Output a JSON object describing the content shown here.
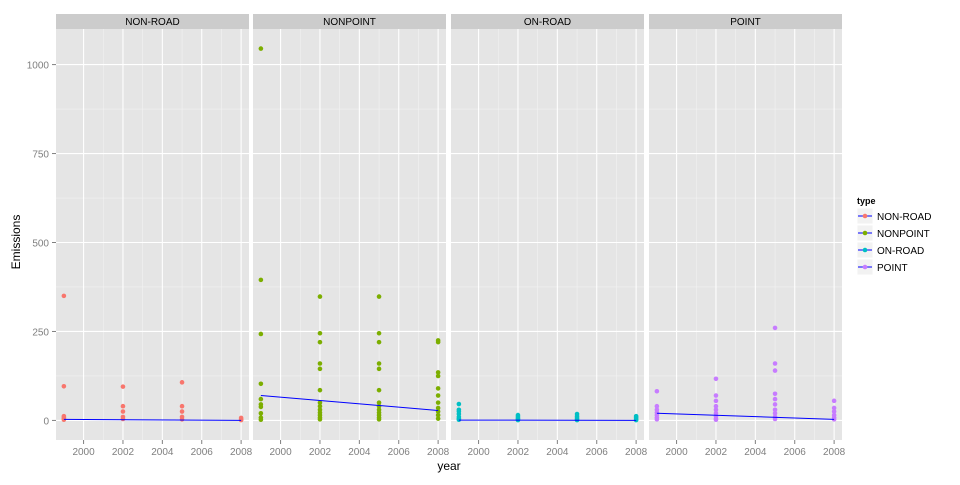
{
  "chart_data": {
    "type": "scatter",
    "facet_by": "type",
    "xlabel": "year",
    "ylabel": "Emissions",
    "xlim": [
      1998.6,
      2008.4
    ],
    "ylim": [
      -55,
      1100
    ],
    "x_ticks": [
      2000,
      2002,
      2004,
      2006,
      2008
    ],
    "y_ticks": [
      0,
      250,
      500,
      750,
      1000
    ],
    "legend": {
      "title": "type",
      "position": "right",
      "entries": [
        "NON-ROAD",
        "NONPOINT",
        "ON-ROAD",
        "POINT"
      ]
    },
    "trend_line_color": "#0000ff",
    "panels": [
      {
        "name": "NON-ROAD",
        "color": "#F8766D",
        "points": [
          {
            "x": 1999,
            "y": 350
          },
          {
            "x": 1999,
            "y": 96
          },
          {
            "x": 1999,
            "y": 12
          },
          {
            "x": 1999,
            "y": 8
          },
          {
            "x": 1999,
            "y": 5
          },
          {
            "x": 1999,
            "y": 2
          },
          {
            "x": 2002,
            "y": 95
          },
          {
            "x": 2002,
            "y": 40
          },
          {
            "x": 2002,
            "y": 25
          },
          {
            "x": 2002,
            "y": 10
          },
          {
            "x": 2002,
            "y": 4
          },
          {
            "x": 2005,
            "y": 107
          },
          {
            "x": 2005,
            "y": 40
          },
          {
            "x": 2005,
            "y": 25
          },
          {
            "x": 2005,
            "y": 10
          },
          {
            "x": 2005,
            "y": 3
          },
          {
            "x": 2008,
            "y": 7
          },
          {
            "x": 2008,
            "y": 3
          },
          {
            "x": 2008,
            "y": 1
          }
        ],
        "trend": [
          {
            "x": 1999,
            "y": 3
          },
          {
            "x": 2008,
            "y": 0
          }
        ]
      },
      {
        "name": "NONPOINT",
        "color": "#7CAE00",
        "points": [
          {
            "x": 1999,
            "y": 1045
          },
          {
            "x": 1999,
            "y": 395
          },
          {
            "x": 1999,
            "y": 243
          },
          {
            "x": 1999,
            "y": 103
          },
          {
            "x": 1999,
            "y": 60
          },
          {
            "x": 1999,
            "y": 45
          },
          {
            "x": 1999,
            "y": 38
          },
          {
            "x": 1999,
            "y": 20
          },
          {
            "x": 1999,
            "y": 8
          },
          {
            "x": 1999,
            "y": 2
          },
          {
            "x": 2002,
            "y": 348
          },
          {
            "x": 2002,
            "y": 245
          },
          {
            "x": 2002,
            "y": 220
          },
          {
            "x": 2002,
            "y": 160
          },
          {
            "x": 2002,
            "y": 145
          },
          {
            "x": 2002,
            "y": 85
          },
          {
            "x": 2002,
            "y": 50
          },
          {
            "x": 2002,
            "y": 40
          },
          {
            "x": 2002,
            "y": 30
          },
          {
            "x": 2002,
            "y": 22
          },
          {
            "x": 2002,
            "y": 15
          },
          {
            "x": 2002,
            "y": 8
          },
          {
            "x": 2002,
            "y": 3
          },
          {
            "x": 2005,
            "y": 348
          },
          {
            "x": 2005,
            "y": 245
          },
          {
            "x": 2005,
            "y": 220
          },
          {
            "x": 2005,
            "y": 160
          },
          {
            "x": 2005,
            "y": 145
          },
          {
            "x": 2005,
            "y": 85
          },
          {
            "x": 2005,
            "y": 50
          },
          {
            "x": 2005,
            "y": 40
          },
          {
            "x": 2005,
            "y": 30
          },
          {
            "x": 2005,
            "y": 22
          },
          {
            "x": 2005,
            "y": 15
          },
          {
            "x": 2005,
            "y": 8
          },
          {
            "x": 2005,
            "y": 3
          },
          {
            "x": 2008,
            "y": 225
          },
          {
            "x": 2008,
            "y": 220
          },
          {
            "x": 2008,
            "y": 135
          },
          {
            "x": 2008,
            "y": 125
          },
          {
            "x": 2008,
            "y": 90
          },
          {
            "x": 2008,
            "y": 70
          },
          {
            "x": 2008,
            "y": 50
          },
          {
            "x": 2008,
            "y": 35
          },
          {
            "x": 2008,
            "y": 25
          },
          {
            "x": 2008,
            "y": 15
          },
          {
            "x": 2008,
            "y": 5
          }
        ],
        "trend": [
          {
            "x": 1999,
            "y": 70
          },
          {
            "x": 2008,
            "y": 28
          }
        ]
      },
      {
        "name": "ON-ROAD",
        "color": "#00BFC4",
        "points": [
          {
            "x": 1999,
            "y": 46
          },
          {
            "x": 1999,
            "y": 30
          },
          {
            "x": 1999,
            "y": 25
          },
          {
            "x": 1999,
            "y": 18
          },
          {
            "x": 1999,
            "y": 10
          },
          {
            "x": 1999,
            "y": 5
          },
          {
            "x": 1999,
            "y": 2
          },
          {
            "x": 2002,
            "y": 15
          },
          {
            "x": 2002,
            "y": 10
          },
          {
            "x": 2002,
            "y": 6
          },
          {
            "x": 2002,
            "y": 3
          },
          {
            "x": 2002,
            "y": 1
          },
          {
            "x": 2005,
            "y": 18
          },
          {
            "x": 2005,
            "y": 12
          },
          {
            "x": 2005,
            "y": 7
          },
          {
            "x": 2005,
            "y": 3
          },
          {
            "x": 2005,
            "y": 1
          },
          {
            "x": 2008,
            "y": 12
          },
          {
            "x": 2008,
            "y": 8
          },
          {
            "x": 2008,
            "y": 4
          },
          {
            "x": 2008,
            "y": 1
          }
        ],
        "trend": [
          {
            "x": 1999,
            "y": 1
          },
          {
            "x": 2008,
            "y": 0
          }
        ]
      },
      {
        "name": "POINT",
        "color": "#C77CFF",
        "points": [
          {
            "x": 1999,
            "y": 82
          },
          {
            "x": 1999,
            "y": 40
          },
          {
            "x": 1999,
            "y": 30
          },
          {
            "x": 1999,
            "y": 22
          },
          {
            "x": 1999,
            "y": 15
          },
          {
            "x": 1999,
            "y": 8
          },
          {
            "x": 1999,
            "y": 3
          },
          {
            "x": 2002,
            "y": 117
          },
          {
            "x": 2002,
            "y": 70
          },
          {
            "x": 2002,
            "y": 55
          },
          {
            "x": 2002,
            "y": 40
          },
          {
            "x": 2002,
            "y": 30
          },
          {
            "x": 2002,
            "y": 20
          },
          {
            "x": 2002,
            "y": 12
          },
          {
            "x": 2002,
            "y": 5
          },
          {
            "x": 2002,
            "y": 2
          },
          {
            "x": 2005,
            "y": 260
          },
          {
            "x": 2005,
            "y": 160
          },
          {
            "x": 2005,
            "y": 140
          },
          {
            "x": 2005,
            "y": 75
          },
          {
            "x": 2005,
            "y": 60
          },
          {
            "x": 2005,
            "y": 45
          },
          {
            "x": 2005,
            "y": 30
          },
          {
            "x": 2005,
            "y": 20
          },
          {
            "x": 2005,
            "y": 10
          },
          {
            "x": 2005,
            "y": 4
          },
          {
            "x": 2008,
            "y": 55
          },
          {
            "x": 2008,
            "y": 35
          },
          {
            "x": 2008,
            "y": 25
          },
          {
            "x": 2008,
            "y": 15
          },
          {
            "x": 2008,
            "y": 8
          },
          {
            "x": 2008,
            "y": 3
          }
        ],
        "trend": [
          {
            "x": 1999,
            "y": 20
          },
          {
            "x": 2008,
            "y": 3
          }
        ]
      }
    ]
  }
}
